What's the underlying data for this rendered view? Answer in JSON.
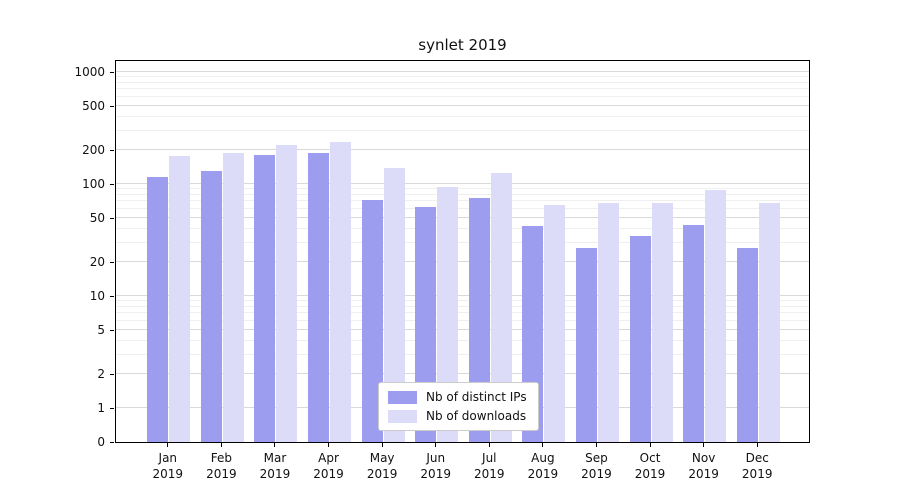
{
  "chart_data": {
    "type": "bar",
    "title": "synlet 2019",
    "scale": "symlog",
    "grid": true,
    "legend_position": "lower center",
    "categories": [
      "Jan 2019",
      "Feb 2019",
      "Mar 2019",
      "Apr 2019",
      "May 2019",
      "Jun 2019",
      "Jul 2019",
      "Aug 2019",
      "Sep 2019",
      "Oct 2019",
      "Nov 2019",
      "Dec 2019"
    ],
    "category_line1": [
      "Jan",
      "Feb",
      "Mar",
      "Apr",
      "May",
      "Jun",
      "Jul",
      "Aug",
      "Sep",
      "Oct",
      "Nov",
      "Dec"
    ],
    "category_line2": "2019",
    "series": [
      {
        "name": "Nb of distinct IPs",
        "color": "#9d9df0",
        "values": [
          115,
          130,
          180,
          190,
          72,
          62,
          75,
          42,
          27,
          34,
          43,
          27
        ]
      },
      {
        "name": "Nb of downloads",
        "color": "#dcdcf9",
        "values": [
          178,
          190,
          225,
          235,
          140,
          95,
          125,
          65,
          67,
          67,
          88,
          68
        ]
      }
    ],
    "y_ticks": [
      0,
      1,
      2,
      5,
      10,
      20,
      50,
      100,
      200,
      500,
      1000
    ],
    "ylim": [
      0,
      1300
    ],
    "xlabel": "",
    "ylabel": ""
  },
  "colors": {
    "grid_major": "#d9d9d9",
    "grid_minor": "#efefef",
    "axis": "#000000",
    "background": "#ffffff"
  }
}
